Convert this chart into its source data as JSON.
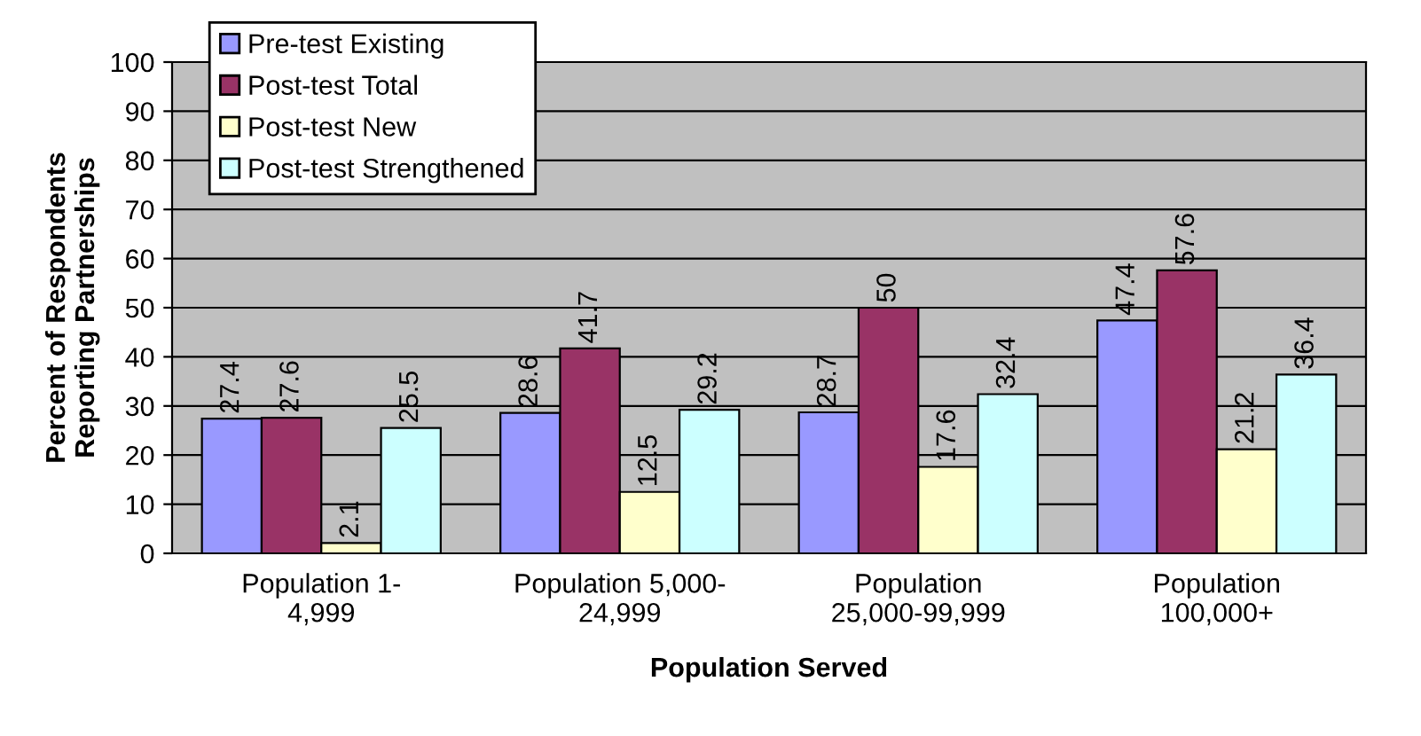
{
  "chart_data": {
    "type": "bar",
    "xlabel": "Population Served",
    "ylabel": "Percent of Respondents\nReporting Partnerships",
    "categories": [
      "Population 1-4,999",
      "Population 5,000-24,999",
      "Population 25,000-99,999",
      "Population 100,000+"
    ],
    "series": [
      {
        "name": "Pre-test Existing",
        "color": "#9999ff",
        "values": [
          27.4,
          28.6,
          28.7,
          47.4
        ]
      },
      {
        "name": "Post-test Total",
        "color": "#993366",
        "values": [
          27.6,
          41.7,
          50,
          57.6
        ]
      },
      {
        "name": "Post-test New",
        "color": "#ffffcc",
        "values": [
          2.1,
          12.5,
          17.6,
          21.2
        ]
      },
      {
        "name": "Post-test Strengthened",
        "color": "#ccffff",
        "values": [
          25.5,
          29.2,
          32.4,
          36.4
        ]
      }
    ],
    "ylim": [
      0,
      100
    ],
    "yticks": [
      0,
      10,
      20,
      30,
      40,
      50,
      60,
      70,
      80,
      90,
      100
    ],
    "grid": "y",
    "legend": "top left",
    "data_labels": true
  }
}
